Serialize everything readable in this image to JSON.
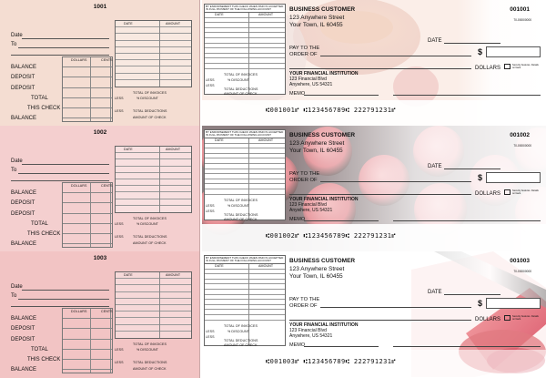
{
  "colors": {
    "stub1": "#f4ddd2",
    "stub2": "#f4cfcf",
    "stub3": "#f2c4c4",
    "check_bg": "#ffffff"
  },
  "stub_labels": {
    "date": "Date",
    "to": "To",
    "dollars": "DOLLARS",
    "cents": "CENTS",
    "balance": "BALANCE",
    "deposit": "DEPOSIT",
    "total": "TOTAL",
    "this_check": "THIS CHECK",
    "inv_date": "DATE",
    "inv_amount": "AMOUNT",
    "total_invoices": "TOTAL OF INVOICES",
    "less": "LESS",
    "pct_discount": "% DISCOUNT",
    "total_deductions": "TOTAL DEDUCTIONS",
    "amount_of_check": "AMOUNT OF CHECK"
  },
  "check_labels": {
    "endorse": "BY ENDORSEMENT THIS CHECK WHEN PAID IS ACCEPTED IN FULL PAYMENT OF THE FOLLOWING ACCOUNT",
    "date": "DATE",
    "amount": "AMOUNT",
    "pay_to": "PAY TO THE",
    "order_of": "ORDER OF",
    "dollar_sign": "$",
    "dollars": "DOLLARS",
    "security": "Security features. Details on back.",
    "memo": "MEMO",
    "total_invoices": "TOTAL OF INVOICES",
    "less": "LESS",
    "pct_discount": "% DISCOUNT",
    "total_deductions": "TOTAL DEDUCTIONS",
    "amount_of_check": "AMOUNT OF CHECK"
  },
  "business": {
    "name": "BUSINESS CUSTOMER",
    "street": "123 Anywhere Street",
    "city": "Your Town, IL 60455"
  },
  "bank": {
    "name": "YOUR FINANCIAL INSTITUTION",
    "street": "123 Financial Blvd",
    "city": "Anywhere, US 54321"
  },
  "routing_small": "70-0000/0000",
  "checks": [
    {
      "stub_number": "1001",
      "check_number": "001001",
      "micr": "⑆001001⑈ ⑆123456789⑆ 222791231⑈"
    },
    {
      "stub_number": "1002",
      "check_number": "001002",
      "micr": "⑆001002⑈ ⑆123456789⑆ 222791231⑈"
    },
    {
      "stub_number": "1003",
      "check_number": "001003",
      "micr": "⑆001003⑈ ⑆123456789⑆ 222791231⑈"
    }
  ]
}
